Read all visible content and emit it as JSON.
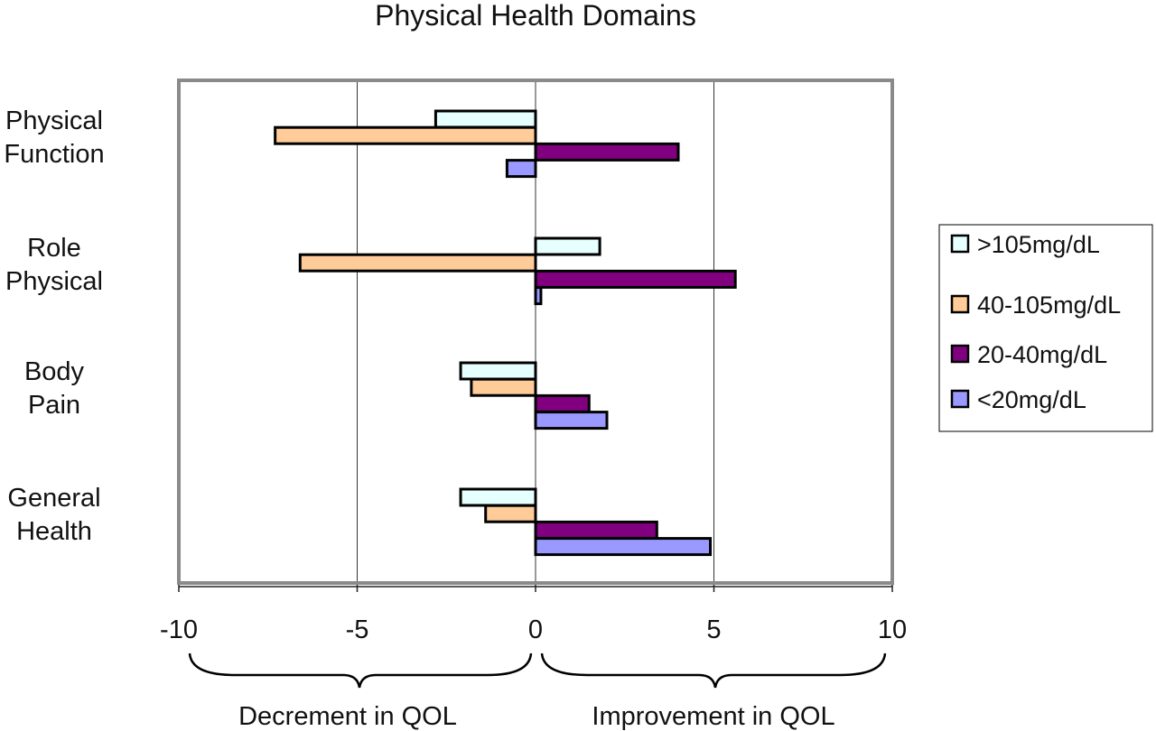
{
  "chart_data": {
    "type": "bar",
    "orientation": "horizontal",
    "title": "Physical Health Domains",
    "categories": [
      [
        "Physical",
        "Function"
      ],
      [
        "Role",
        "Physical"
      ],
      [
        "Body",
        "Pain"
      ],
      [
        "General",
        "Health"
      ]
    ],
    "series": [
      {
        "name": ">105mg/dL",
        "color": "#e6ffff",
        "values": [
          -2.8,
          1.8,
          -2.1,
          -2.1
        ]
      },
      {
        "name": "40-105mg/dL",
        "color": "#ffcc99",
        "values": [
          -7.3,
          -6.6,
          -1.8,
          -1.4
        ]
      },
      {
        "name": "20-40mg/dL",
        "color": "#800080",
        "values": [
          4.0,
          5.6,
          1.5,
          3.4
        ]
      },
      {
        "name": "<20mg/dL",
        "color": "#9999ff",
        "values": [
          -0.8,
          0.15,
          2.0,
          4.9
        ]
      }
    ],
    "xlim": [
      -10,
      10
    ],
    "xticks": [
      -10,
      -5,
      0,
      5,
      10
    ],
    "xtick_labels": [
      "-10",
      "-5",
      "0",
      "5",
      "10"
    ],
    "gridlines": "vertical",
    "legend_position": "right",
    "annotations": {
      "left": "Decrement in QOL",
      "right": "Improvement in QOL"
    }
  }
}
